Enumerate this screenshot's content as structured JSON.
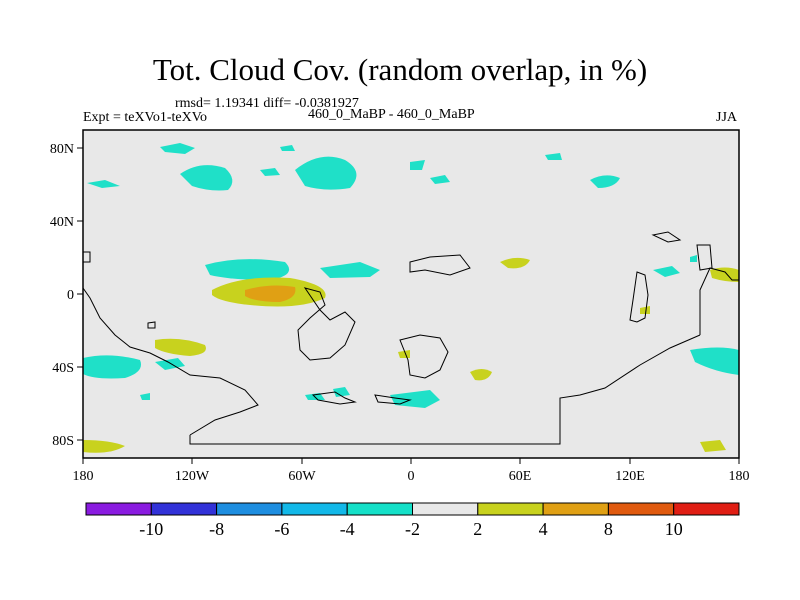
{
  "title": "Tot. Cloud Cov. (random overlap, in %)",
  "stats": "rmsd= 1.19341 diff= -0.0381927",
  "expt": "Expt = teXVo1-teXVo",
  "run": "460_0_MaBP - 460_0_MaBP",
  "season": "JJA",
  "map": {
    "x_ticks": [
      "180",
      "120W",
      "60W",
      "0",
      "60E",
      "120E",
      "180"
    ],
    "y_ticks": [
      "80N",
      "40N",
      "0",
      "40S",
      "80S"
    ]
  },
  "colorbar": {
    "labels": [
      "-10",
      "-8",
      "-6",
      "-4",
      "-2",
      "2",
      "4",
      "8",
      "10"
    ],
    "colors": [
      "#8a1be0",
      "#3232d8",
      "#1e8ee0",
      "#12b8e8",
      "#15e0c8",
      "#e8e8e8",
      "#c8d21e",
      "#e0a014",
      "#e05a0f",
      "#e01e14"
    ]
  },
  "colors": {
    "background": "#e8e8e8",
    "teal": "#1fe0c8",
    "yellow": "#c8d21e",
    "orange": "#e0a014"
  }
}
